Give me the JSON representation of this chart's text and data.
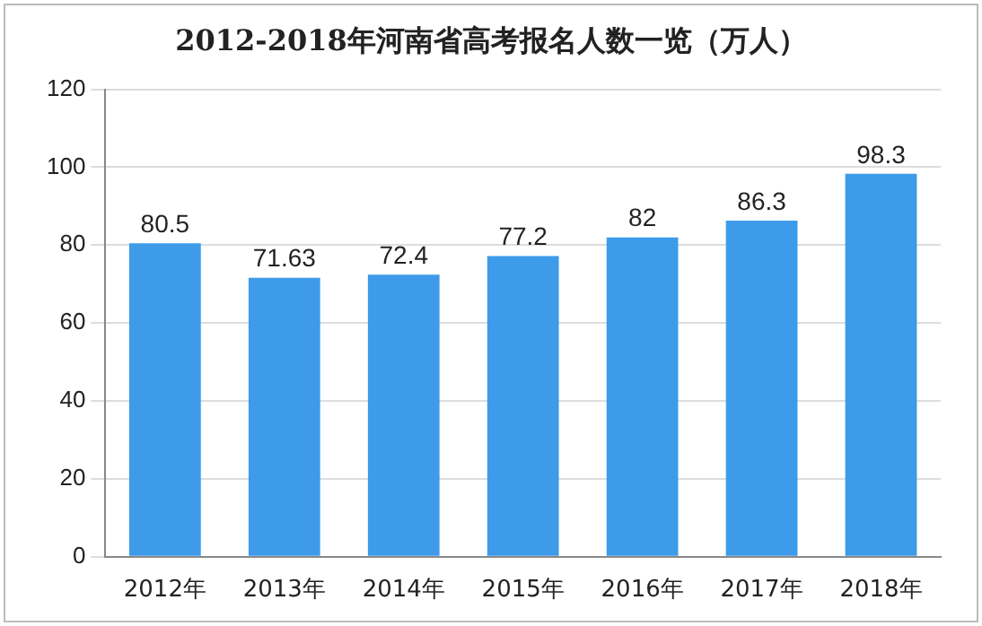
{
  "chart_data": {
    "type": "bar",
    "title": "2012-2018年河南省高考报名人数一览（万人）",
    "categories": [
      "2012年",
      "2013年",
      "2014年",
      "2015年",
      "2016年",
      "2017年",
      "2018年"
    ],
    "values": [
      80.5,
      71.63,
      72.4,
      77.2,
      82,
      86.3,
      98.3
    ],
    "color": "#3d9be9",
    "ylim": [
      0,
      120
    ],
    "yticks": [
      0,
      20,
      40,
      60,
      80,
      100,
      120
    ],
    "grid": "y",
    "data_labels": true,
    "legend": false
  }
}
